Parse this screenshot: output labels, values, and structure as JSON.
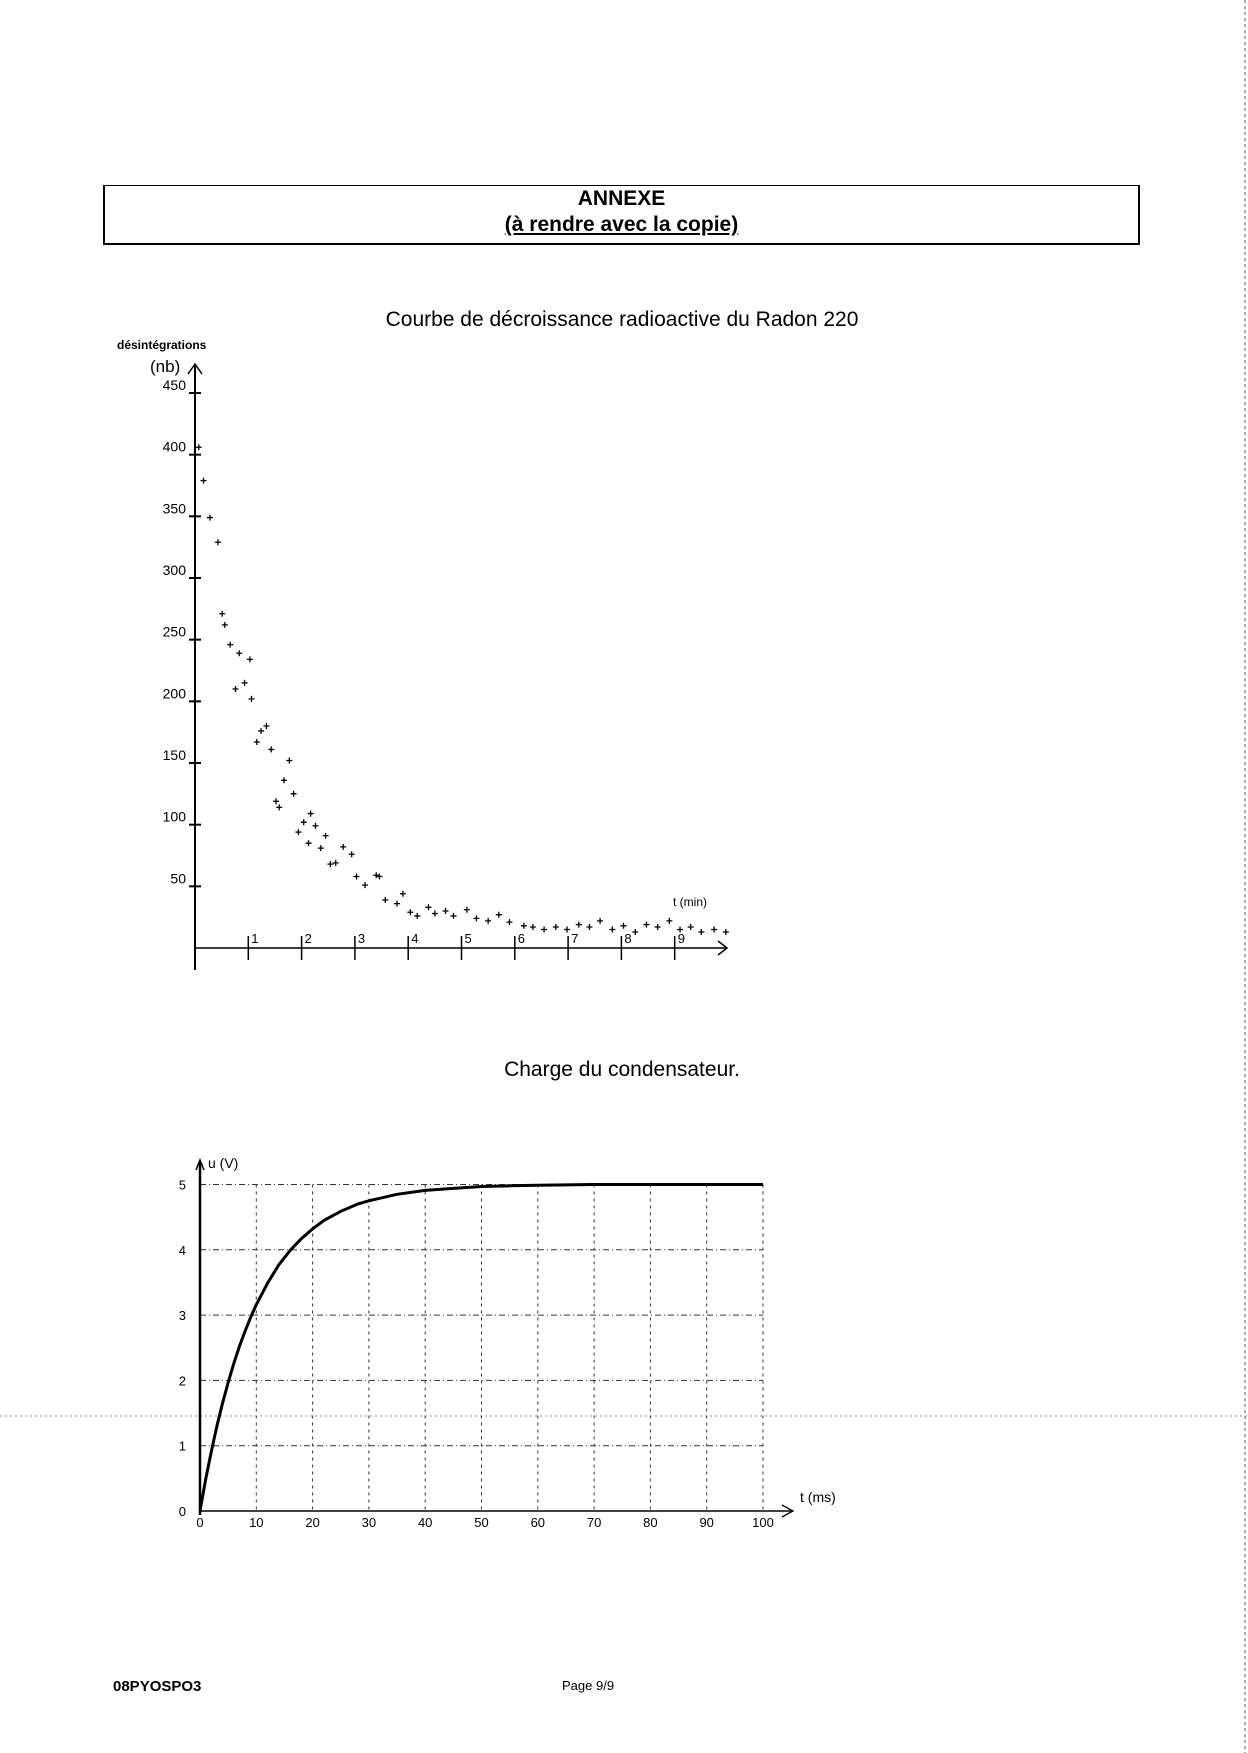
{
  "header": {
    "line1": "ANNEXE",
    "line2": "(à rendre avec la copie)"
  },
  "footer": {
    "code": "08PYOSPO3",
    "page": "Page 9/9"
  },
  "chart_data": [
    {
      "type": "scatter",
      "title": "Courbe de décroissance radioactive du Radon 220",
      "ylabel": "désintégrations",
      "ylabel_unit": "(nb)",
      "xlabel": "t (min)",
      "xlim": [
        0,
        10
      ],
      "ylim": [
        0,
        450
      ],
      "x_ticks": [
        1,
        2,
        3,
        4,
        5,
        6,
        7,
        8,
        9
      ],
      "y_ticks": [
        50,
        100,
        150,
        200,
        250,
        300,
        350,
        400,
        450
      ],
      "grid": false,
      "marker": "+",
      "points": [
        [
          0.07,
          406
        ],
        [
          0.16,
          379
        ],
        [
          0.28,
          349
        ],
        [
          0.43,
          329
        ],
        [
          0.51,
          271
        ],
        [
          0.56,
          262
        ],
        [
          0.66,
          246
        ],
        [
          0.76,
          210
        ],
        [
          0.83,
          239
        ],
        [
          0.93,
          215
        ],
        [
          1.03,
          234
        ],
        [
          1.06,
          202
        ],
        [
          1.16,
          167
        ],
        [
          1.24,
          176
        ],
        [
          1.34,
          180
        ],
        [
          1.43,
          161
        ],
        [
          1.52,
          119
        ],
        [
          1.58,
          114
        ],
        [
          1.67,
          136
        ],
        [
          1.77,
          152
        ],
        [
          1.85,
          125
        ],
        [
          1.94,
          94
        ],
        [
          2.04,
          102
        ],
        [
          2.13,
          85
        ],
        [
          2.17,
          109
        ],
        [
          2.26,
          99
        ],
        [
          2.36,
          81
        ],
        [
          2.45,
          91
        ],
        [
          2.54,
          68
        ],
        [
          2.64,
          69
        ],
        [
          2.78,
          82
        ],
        [
          2.94,
          76
        ],
        [
          3.03,
          58
        ],
        [
          3.19,
          51
        ],
        [
          3.4,
          59
        ],
        [
          3.46,
          58
        ],
        [
          3.57,
          39
        ],
        [
          3.79,
          36
        ],
        [
          3.9,
          44
        ],
        [
          4.04,
          29
        ],
        [
          4.17,
          26
        ],
        [
          4.38,
          33
        ],
        [
          4.5,
          28
        ],
        [
          4.7,
          30
        ],
        [
          4.85,
          26
        ],
        [
          5.1,
          31
        ],
        [
          5.28,
          24
        ],
        [
          5.5,
          22
        ],
        [
          5.7,
          27
        ],
        [
          5.9,
          21
        ],
        [
          6.17,
          18
        ],
        [
          6.34,
          17
        ],
        [
          6.55,
          15
        ],
        [
          6.77,
          17
        ],
        [
          6.98,
          15
        ],
        [
          7.2,
          19
        ],
        [
          7.4,
          17
        ],
        [
          7.6,
          22
        ],
        [
          7.83,
          15
        ],
        [
          8.04,
          18
        ],
        [
          8.26,
          13
        ],
        [
          8.47,
          19
        ],
        [
          8.68,
          17
        ],
        [
          8.9,
          22
        ],
        [
          9.1,
          15
        ],
        [
          9.3,
          17
        ],
        [
          9.5,
          13
        ],
        [
          9.74,
          15
        ],
        [
          9.96,
          13
        ]
      ]
    },
    {
      "type": "line",
      "title": "Charge du condensateur.",
      "ylabel": "u (V)",
      "xlabel": "t (ms)",
      "xlim": [
        0,
        100
      ],
      "ylim": [
        0,
        5
      ],
      "x_ticks": [
        0,
        10,
        20,
        30,
        40,
        50,
        60,
        70,
        80,
        90,
        100
      ],
      "y_ticks": [
        0,
        1,
        2,
        3,
        4,
        5
      ],
      "grid": true,
      "series": [
        {
          "x": [
            0,
            1,
            2,
            3,
            4,
            5,
            6,
            7,
            8,
            9,
            10,
            12,
            14,
            16,
            18,
            20,
            22,
            25,
            28,
            30,
            35,
            40,
            45,
            50,
            55,
            60,
            70,
            80,
            90,
            100
          ],
          "y": [
            0,
            0.48,
            0.91,
            1.3,
            1.65,
            1.97,
            2.26,
            2.52,
            2.75,
            2.97,
            3.16,
            3.49,
            3.77,
            3.99,
            4.17,
            4.32,
            4.45,
            4.59,
            4.7,
            4.75,
            4.85,
            4.91,
            4.94,
            4.97,
            4.98,
            4.99,
            5.0,
            5.0,
            5.0,
            5.0
          ]
        }
      ]
    }
  ]
}
